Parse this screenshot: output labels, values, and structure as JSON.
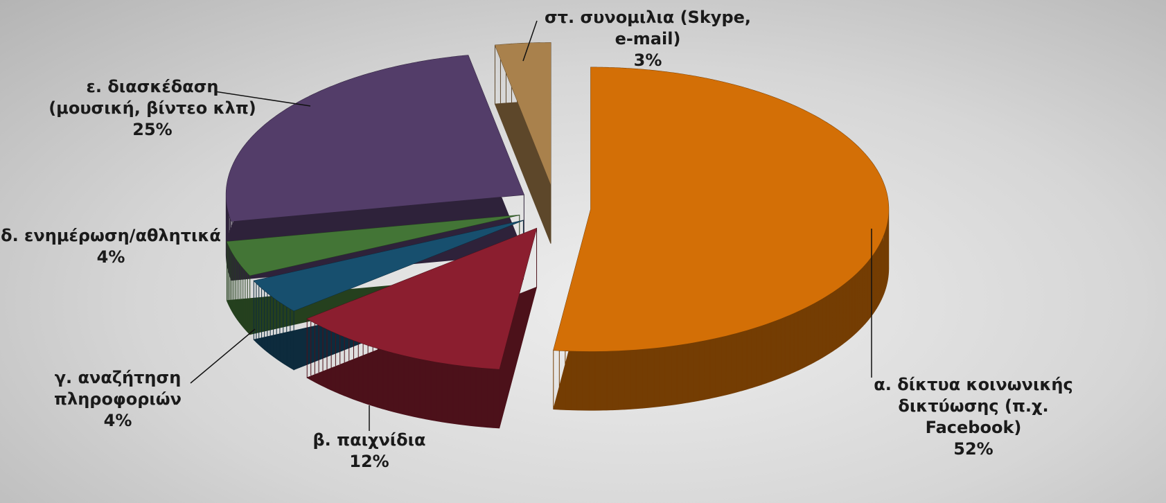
{
  "chart_data": {
    "type": "pie",
    "categories": [
      "α. δίκτυα κοινωνικής δικτύωσης (π.χ. Facebook)",
      "β. παιχνίδια",
      "γ. αναζήτηση πληροφοριών",
      "δ. ενημέρωση/αθλητικά",
      "ε. διασκέδαση (μουσική, βίντεο κλπ)",
      "στ. συνομιλια (Skype, e-mail)"
    ],
    "values": [
      52,
      12,
      4,
      4,
      25,
      3
    ],
    "value_labels": [
      "52%",
      "12%",
      "4%",
      "4%",
      "25%",
      "3%"
    ],
    "colors": [
      "#d36f06",
      "#8b1e2f",
      "#174f6e",
      "#437536",
      "#533d69",
      "#a9814c"
    ]
  }
}
